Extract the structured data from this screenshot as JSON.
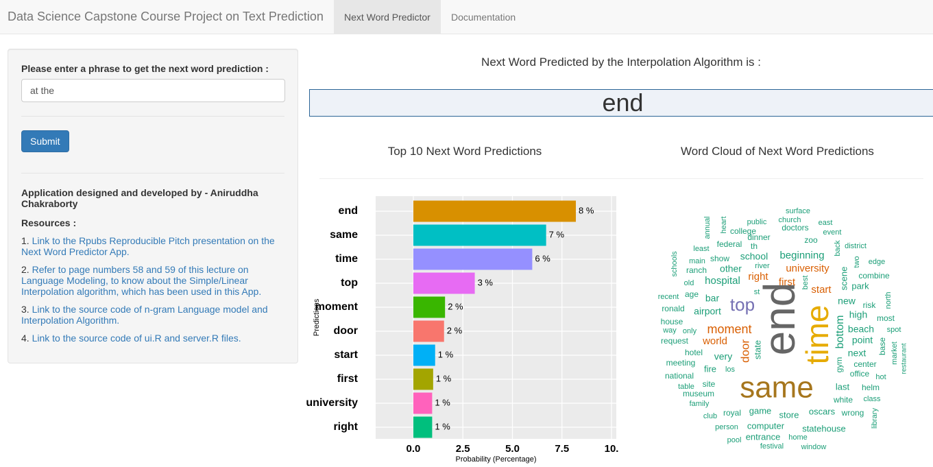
{
  "navbar": {
    "brand": "Data Science Capstone Course Project on Text Prediction",
    "tabs": [
      "Next Word Predictor",
      "Documentation"
    ],
    "active_tab": 0
  },
  "sidebar": {
    "prompt": "Please enter a phrase to get the next word prediction :",
    "input_value": "at the",
    "button": "Submit",
    "credit": "Application designed and developed by - Aniruddha Chakraborty",
    "resources_heading": "Resources :",
    "resources": [
      {
        "number": "1.",
        "text": "Link to the Rpubs Reproducible Pitch presentation on the Next Word Predictor App."
      },
      {
        "number": "2.",
        "text": "Refer to page numbers 58 and 59 of this lecture on Language Modeling, to know about the Simple/Linear Interpolation algorithm, which has been used in this App."
      },
      {
        "number": "3.",
        "text": "Link to the source code of n-gram Language model and Interpolation Algorithm."
      },
      {
        "number": "4.",
        "text": "Link to the source code of ui.R and server.R files."
      }
    ]
  },
  "main": {
    "heading": "Next Word Predicted by the Interpolation Algorithm is :",
    "prediction": "end",
    "bar_heading": "Top 10 Next Word Predictions",
    "cloud_heading": "Word Cloud of Next Word Predictions"
  },
  "chart_data": {
    "type": "hbar",
    "categories": [
      "end",
      "same",
      "time",
      "top",
      "moment",
      "door",
      "start",
      "first",
      "university",
      "right"
    ],
    "values": [
      8.2,
      6.7,
      6.0,
      3.1,
      1.6,
      1.55,
      1.1,
      1.0,
      0.95,
      0.95
    ],
    "value_labels": [
      "8 %",
      "7 %",
      "6 %",
      "3 %",
      "2 %",
      "2 %",
      "1 %",
      "1 %",
      "1 %",
      "1 %"
    ],
    "colors": [
      "#D89000",
      "#00BFC4",
      "#9590FF",
      "#E76BF3",
      "#39B600",
      "#F8766D",
      "#00B0F6",
      "#A3A500",
      "#FF62BC",
      "#00BF7D"
    ],
    "xlabel": "Probability (Percentage)",
    "ylabel": "Predictions",
    "xlim": [
      -1.9,
      10.24
    ],
    "xticks": [
      {
        "value": 0,
        "label": "0.0"
      },
      2.5,
      {
        "value": 5,
        "label": "5.0"
      },
      7.5,
      {
        "value": 10,
        "label": "10."
      }
    ],
    "grid": true
  },
  "wordcloud": {
    "words": [
      {
        "text": "surface",
        "color": "#1b9e77"
      },
      {
        "text": "church",
        "color": "#1b9e77"
      },
      {
        "text": "public",
        "color": "#1b9e77"
      },
      {
        "text": "east",
        "color": "#1b9e77"
      },
      {
        "text": "annual",
        "color": "#1b9e77"
      },
      {
        "text": "heart",
        "color": "#1b9e77"
      },
      {
        "text": "college",
        "color": "#1b9e77"
      },
      {
        "text": "doctors",
        "color": "#1b9e77"
      },
      {
        "text": "event",
        "color": "#1b9e77"
      },
      {
        "text": "dinner",
        "color": "#1b9e77"
      },
      {
        "text": "zoo",
        "color": "#1b9e77"
      },
      {
        "text": "federal",
        "color": "#1b9e77"
      },
      {
        "text": "th",
        "color": "#1b9e77"
      },
      {
        "text": "back",
        "color": "#1b9e77"
      },
      {
        "text": "district",
        "color": "#1b9e77"
      },
      {
        "text": "least",
        "color": "#1b9e77"
      },
      {
        "text": "beginning",
        "color": "#1b9e77"
      },
      {
        "text": "school",
        "color": "#1b9e77"
      },
      {
        "text": "show",
        "color": "#1b9e77"
      },
      {
        "text": "main",
        "color": "#1b9e77"
      },
      {
        "text": "two",
        "color": "#1b9e77"
      },
      {
        "text": "edge",
        "color": "#1b9e77"
      },
      {
        "text": "schools",
        "color": "#1b9e77"
      },
      {
        "text": "river",
        "color": "#1b9e77"
      },
      {
        "text": "ranch",
        "color": "#1b9e77"
      },
      {
        "text": "other",
        "color": "#1b9e77"
      },
      {
        "text": "university",
        "color": "#d95f02"
      },
      {
        "text": "best",
        "color": "#1b9e77"
      },
      {
        "text": "right",
        "color": "#d95f02"
      },
      {
        "text": "combine",
        "color": "#1b9e77"
      },
      {
        "text": "hospital",
        "color": "#1b9e77"
      },
      {
        "text": "first",
        "color": "#d95f02"
      },
      {
        "text": "scene",
        "color": "#1b9e77"
      },
      {
        "text": "park",
        "color": "#1b9e77"
      },
      {
        "text": "old",
        "color": "#1b9e77"
      },
      {
        "text": "st",
        "color": "#1b9e77"
      },
      {
        "text": "start",
        "color": "#d95f02"
      },
      {
        "text": "recent",
        "color": "#1b9e77"
      },
      {
        "text": "age",
        "color": "#1b9e77"
      },
      {
        "text": "bar",
        "color": "#1b9e77"
      },
      {
        "text": "top",
        "color": "#7570b3"
      },
      {
        "text": "end",
        "color": "#666666"
      },
      {
        "text": "time",
        "color": "#e6ab02"
      },
      {
        "text": "new",
        "color": "#1b9e77"
      },
      {
        "text": "risk",
        "color": "#1b9e77"
      },
      {
        "text": "north",
        "color": "#1b9e77"
      },
      {
        "text": "ronald",
        "color": "#1b9e77"
      },
      {
        "text": "airport",
        "color": "#1b9e77"
      },
      {
        "text": "high",
        "color": "#1b9e77"
      },
      {
        "text": "most",
        "color": "#1b9e77"
      },
      {
        "text": "house",
        "color": "#1b9e77"
      },
      {
        "text": "bottom",
        "color": "#1b9e77"
      },
      {
        "text": "beach",
        "color": "#1b9e77"
      },
      {
        "text": "spot",
        "color": "#1b9e77"
      },
      {
        "text": "way",
        "color": "#1b9e77"
      },
      {
        "text": "only",
        "color": "#1b9e77"
      },
      {
        "text": "moment",
        "color": "#d95f02"
      },
      {
        "text": "request",
        "color": "#1b9e77"
      },
      {
        "text": "world",
        "color": "#d95f02"
      },
      {
        "text": "point",
        "color": "#1b9e77"
      },
      {
        "text": "base",
        "color": "#1b9e77"
      },
      {
        "text": "state",
        "color": "#1b9e77"
      },
      {
        "text": "door",
        "color": "#d95f02"
      },
      {
        "text": "market",
        "color": "#1b9e77"
      },
      {
        "text": "hotel",
        "color": "#1b9e77"
      },
      {
        "text": "next",
        "color": "#1b9e77"
      },
      {
        "text": "restaurant",
        "color": "#1b9e77"
      },
      {
        "text": "very",
        "color": "#1b9e77"
      },
      {
        "text": "meeting",
        "color": "#1b9e77"
      },
      {
        "text": "gym",
        "color": "#1b9e77"
      },
      {
        "text": "center",
        "color": "#1b9e77"
      },
      {
        "text": "fire",
        "color": "#1b9e77"
      },
      {
        "text": "los",
        "color": "#1b9e77"
      },
      {
        "text": "office",
        "color": "#1b9e77"
      },
      {
        "text": "hot",
        "color": "#1b9e77"
      },
      {
        "text": "national",
        "color": "#1b9e77"
      },
      {
        "text": "same",
        "color": "#a6761d"
      },
      {
        "text": "site",
        "color": "#1b9e77"
      },
      {
        "text": "last",
        "color": "#1b9e77"
      },
      {
        "text": "helm",
        "color": "#1b9e77"
      },
      {
        "text": "table",
        "color": "#1b9e77"
      },
      {
        "text": "museum",
        "color": "#1b9e77"
      },
      {
        "text": "white",
        "color": "#1b9e77"
      },
      {
        "text": "class",
        "color": "#1b9e77"
      },
      {
        "text": "family",
        "color": "#1b9e77"
      },
      {
        "text": "library",
        "color": "#1b9e77"
      },
      {
        "text": "game",
        "color": "#1b9e77"
      },
      {
        "text": "oscars",
        "color": "#1b9e77"
      },
      {
        "text": "wrong",
        "color": "#1b9e77"
      },
      {
        "text": "club",
        "color": "#1b9e77"
      },
      {
        "text": "royal",
        "color": "#1b9e77"
      },
      {
        "text": "store",
        "color": "#1b9e77"
      },
      {
        "text": "person",
        "color": "#1b9e77"
      },
      {
        "text": "computer",
        "color": "#1b9e77"
      },
      {
        "text": "statehouse",
        "color": "#1b9e77"
      },
      {
        "text": "entrance",
        "color": "#1b9e77"
      },
      {
        "text": "home",
        "color": "#1b9e77"
      },
      {
        "text": "pool",
        "color": "#1b9e77"
      },
      {
        "text": "festival",
        "color": "#1b9e77"
      },
      {
        "text": "window",
        "color": "#1b9e77"
      }
    ]
  }
}
